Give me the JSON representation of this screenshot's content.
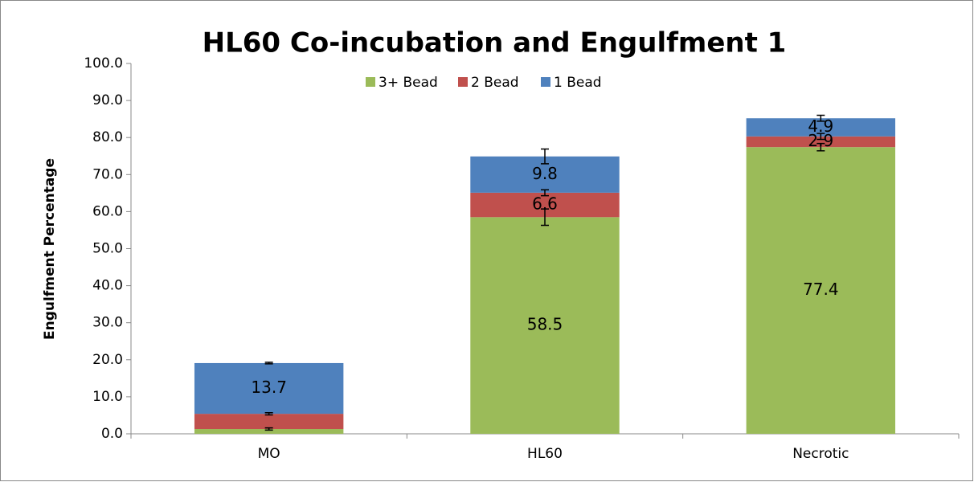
{
  "chart_data": {
    "type": "stacked_bar",
    "title": "HL60 Co-incubation and Engulfment 1",
    "y_label": "Engulfment Percentage",
    "categories": [
      "MO",
      "HL60",
      "Necrotic"
    ],
    "series": [
      {
        "name": "3+ Bead",
        "color": "#9bbb59",
        "values": [
          1.3,
          58.5,
          77.4
        ],
        "value_labels": [
          null,
          "58.5",
          "77.4"
        ],
        "errors": [
          0.3,
          2.2,
          1.0
        ]
      },
      {
        "name": "2 Bead",
        "color": "#c0504d",
        "values": [
          4.1,
          6.6,
          2.9
        ],
        "value_labels": [
          null,
          "6.6",
          "2.9"
        ],
        "errors": [
          0.3,
          0.8,
          0.8
        ]
      },
      {
        "name": "1 Bead",
        "color": "#4f81bd",
        "values": [
          13.7,
          9.8,
          4.9
        ],
        "value_labels": [
          "13.7",
          "9.8",
          "4.9"
        ],
        "errors": [
          0.2,
          2.0,
          0.8
        ]
      }
    ],
    "ylim": [
      0,
      100
    ],
    "yticks": [
      {
        "value": 0,
        "label": "0.0"
      },
      {
        "value": 10,
        "label": "10.0"
      },
      {
        "value": 20,
        "label": "20.0"
      },
      {
        "value": 30,
        "label": "30.0"
      },
      {
        "value": 40,
        "label": "40.0"
      },
      {
        "value": 50,
        "label": "50.0"
      },
      {
        "value": 60,
        "label": "60.0"
      },
      {
        "value": 70,
        "label": "70.0"
      },
      {
        "value": 80,
        "label": "80.0"
      },
      {
        "value": 90,
        "label": "90.0"
      },
      {
        "value": 100,
        "label": "100.0"
      }
    ],
    "legend": "top"
  }
}
